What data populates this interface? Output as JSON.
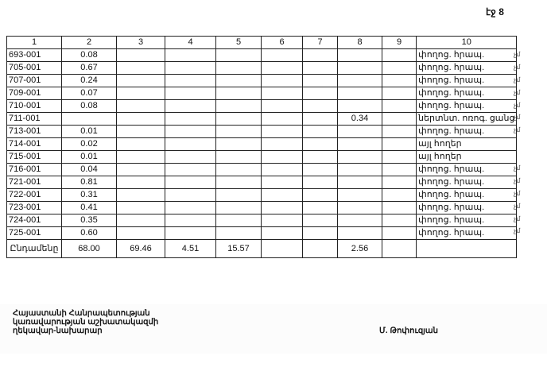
{
  "page_label": "էջ 8",
  "table": {
    "headers": [
      "1",
      "2",
      "3",
      "4",
      "5",
      "6",
      "7",
      "8",
      "9",
      "10"
    ],
    "rows": [
      [
        "693-001",
        "0.08",
        "",
        "",
        "",
        "",
        "",
        "",
        "",
        "փողոց. հրապ."
      ],
      [
        "705-001",
        "0.67",
        "",
        "",
        "",
        "",
        "",
        "",
        "",
        "փողոց. հրապ."
      ],
      [
        "707-001",
        "0.24",
        "",
        "",
        "",
        "",
        "",
        "",
        "",
        "փողոց. հրապ."
      ],
      [
        "709-001",
        "0.07",
        "",
        "",
        "",
        "",
        "",
        "",
        "",
        "փողոց. հրապ."
      ],
      [
        "710-001",
        "0.08",
        "",
        "",
        "",
        "",
        "",
        "",
        "",
        "փողոց. հրապ."
      ],
      [
        "711-001",
        "",
        "",
        "",
        "",
        "",
        "",
        "0.34",
        "",
        "ներտնտ. ոռոգ. ցանց"
      ],
      [
        "713-001",
        "0.01",
        "",
        "",
        "",
        "",
        "",
        "",
        "",
        "փողոց. հրապ."
      ],
      [
        "714-001",
        "0.02",
        "",
        "",
        "",
        "",
        "",
        "",
        "",
        "այլ հողեր"
      ],
      [
        "715-001",
        "0.01",
        "",
        "",
        "",
        "",
        "",
        "",
        "",
        "այլ հողեր"
      ],
      [
        "716-001",
        "0.04",
        "",
        "",
        "",
        "",
        "",
        "",
        "",
        "փողոց. հրապ."
      ],
      [
        "721-001",
        "0.81",
        "",
        "",
        "",
        "",
        "",
        "",
        "",
        "փողոց. հրապ."
      ],
      [
        "722-001",
        "0.31",
        "",
        "",
        "",
        "",
        "",
        "",
        "",
        "փողոց. հրապ."
      ],
      [
        "723-001",
        "0.41",
        "",
        "",
        "",
        "",
        "",
        "",
        "",
        "փողոց. հրապ."
      ],
      [
        "724-001",
        "0.35",
        "",
        "",
        "",
        "",
        "",
        "",
        "",
        "փողոց. հրապ."
      ],
      [
        "725-001",
        "0.60",
        "",
        "",
        "",
        "",
        "",
        "",
        "",
        "փողոց. հրապ."
      ]
    ],
    "total": [
      "Ընդամենը",
      "68.00",
      "69.46",
      "4.51",
      "15.57",
      "",
      "",
      "2.56",
      "",
      ""
    ]
  },
  "margin_marks": [
    "չմ",
    "չմ",
    "չմ",
    "չմ",
    "չմ",
    "չմ",
    "չմ",
    "",
    "",
    "չմ",
    "չմ",
    "չմ",
    "չմ",
    "չմ",
    "չմ"
  ],
  "footer": {
    "signatory_lines": [
      "Հայաստանի Հանրապետության",
      "կառավարության աշխատակազմի",
      "ղեկավար-նախարար"
    ],
    "signatory_name": "Մ. Թոփուզյան"
  }
}
